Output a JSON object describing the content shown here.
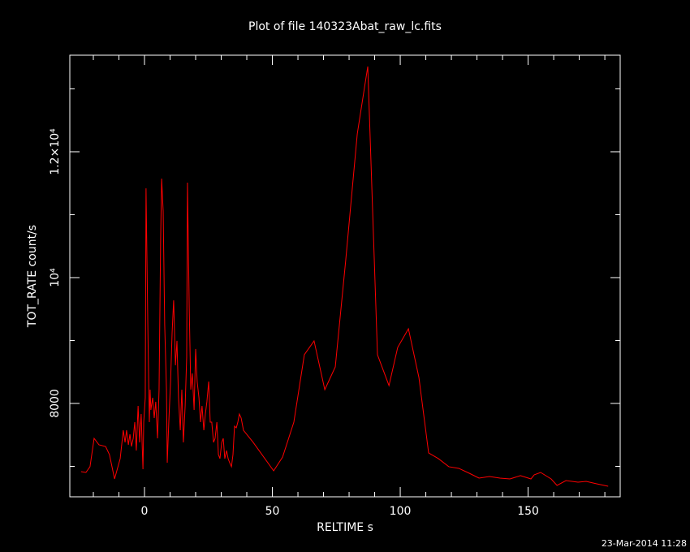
{
  "chart_data": {
    "type": "line",
    "title": "Plot of file 140323Abat_raw_lc.fits",
    "xlabel": "RELTIME  s",
    "ylabel": "TOT_RATE  count/s",
    "timestamp": "23-Mar-2014 11:28",
    "color": "#ff0000",
    "xlim": [
      -29.2,
      186
    ],
    "ylim": [
      6516,
      13535
    ],
    "xticks": [
      0,
      50,
      100,
      150
    ],
    "yticks": [
      8000,
      {
        "value": 10000,
        "label": "10⁴"
      },
      {
        "value": 12000,
        "label": "1.2×10⁴"
      }
    ],
    "xminor": [
      -20,
      -10,
      10,
      20,
      30,
      40,
      60,
      70,
      80,
      90,
      110,
      120,
      130,
      140,
      160,
      170,
      180
    ],
    "yminor": [
      7000,
      9000,
      11000,
      13000
    ],
    "x": [
      -24.8,
      -22.9,
      -21.3,
      -19.7,
      -17.8,
      -15.2,
      -13.7,
      -11.7,
      -9.5,
      -8.3,
      -7.6,
      -7.0,
      -6.3,
      -5.7,
      -5.1,
      -4.4,
      -3.8,
      -3.2,
      -2.5,
      -1.9,
      -1.3,
      -0.6,
      -0.3,
      0.3,
      0.6,
      1.3,
      1.9,
      2.2,
      2.5,
      3.2,
      3.8,
      4.4,
      5.1,
      5.7,
      6.3,
      6.7,
      7.3,
      7.9,
      8.6,
      8.9,
      9.5,
      10.2,
      10.8,
      11.4,
      12.1,
      12.7,
      13.3,
      14.0,
      14.6,
      15.2,
      15.9,
      16.5,
      16.8,
      17.5,
      18.1,
      18.7,
      19.4,
      20.0,
      20.6,
      21.3,
      21.9,
      22.5,
      23.2,
      23.8,
      24.4,
      25.1,
      25.7,
      26.3,
      27.0,
      27.6,
      28.3,
      28.9,
      29.5,
      30.2,
      30.8,
      31.4,
      32.1,
      32.7,
      33.3,
      34.0,
      34.6,
      35.2,
      35.9,
      36.5,
      37.1,
      37.8,
      38.7,
      42.5,
      50.5,
      54.0,
      58.4,
      62.5,
      66.3,
      70.5,
      74.6,
      78.7,
      83.2,
      87.3,
      91.1,
      95.6,
      99.0,
      103.2,
      107.3,
      111.1,
      114.9,
      119.0,
      122.9,
      127.0,
      130.8,
      134.9,
      139.0,
      142.9,
      147.0,
      151.1,
      152.4,
      154.9,
      159.0,
      161.3,
      164.8,
      169.5,
      172.7,
      176.8,
      181.3
    ],
    "values": [
      6916,
      6903,
      6994,
      7445,
      7342,
      7316,
      7187,
      6800,
      7123,
      7574,
      7381,
      7574,
      7342,
      7510,
      7316,
      7445,
      7703,
      7252,
      7961,
      7381,
      7832,
      6955,
      7703,
      8090,
      11419,
      9252,
      7703,
      8219,
      7897,
      8090,
      7768,
      8026,
      7445,
      8219,
      10542,
      11574,
      11058,
      9252,
      8219,
      7058,
      7703,
      8348,
      9123,
      9639,
      8606,
      8994,
      8090,
      7574,
      8219,
      7381,
      7961,
      8735,
      11510,
      9510,
      8219,
      8477,
      7897,
      8865,
      8348,
      8090,
      7703,
      7961,
      7574,
      7832,
      8026,
      8348,
      7703,
      7703,
      7381,
      7445,
      7703,
      7187,
      7123,
      7381,
      7445,
      7123,
      7252,
      7123,
      7058,
      6994,
      7187,
      7639,
      7613,
      7703,
      7832,
      7768,
      7574,
      7381,
      6929,
      7148,
      7703,
      8774,
      8994,
      8219,
      8581,
      10284,
      12284,
      13355,
      8774,
      8284,
      8890,
      9187,
      8413,
      7213,
      7123,
      6994,
      6968,
      6890,
      6813,
      6839,
      6813,
      6800,
      6852,
      6800,
      6865,
      6903,
      6800,
      6697,
      6774,
      6748,
      6761,
      6723,
      6684
    ]
  }
}
